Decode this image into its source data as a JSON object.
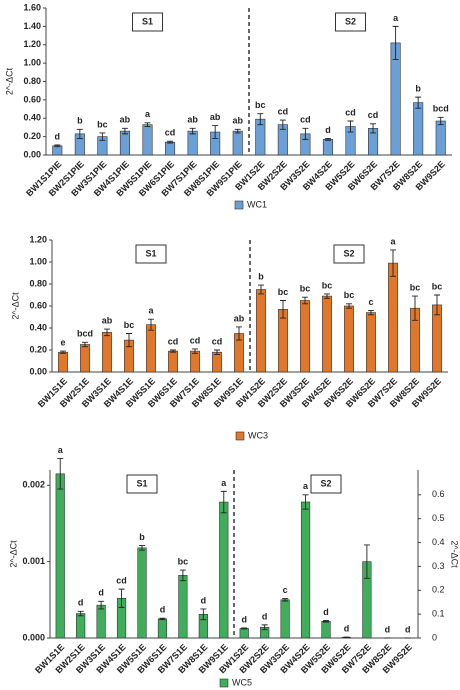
{
  "chart_data": [
    {
      "type": "bar",
      "categories": [
        "BW1S1PIE",
        "BW2S1PIE",
        "BW3S1PIE",
        "BW4S1PIE",
        "BW5S1PIE",
        "BW6S1PIE",
        "BW7S1PIE",
        "BW8S1PIE",
        "BW9S1PIE",
        "BW1S2E",
        "BW2S2E",
        "BW3S2E",
        "BW4S2E",
        "BW5S2E",
        "BW6S2E",
        "BW7S2E",
        "BW8S2E",
        "BW9S2E"
      ],
      "series": [
        {
          "name": "WC1",
          "color": "#6a9fd8",
          "values": [
            0.1,
            0.23,
            0.2,
            0.26,
            0.33,
            0.14,
            0.26,
            0.25,
            0.26,
            0.39,
            0.33,
            0.23,
            0.17,
            0.31,
            0.29,
            1.22,
            0.57,
            0.37
          ],
          "errors": [
            0.01,
            0.05,
            0.04,
            0.03,
            0.02,
            0.01,
            0.03,
            0.07,
            0.02,
            0.06,
            0.05,
            0.06,
            0.01,
            0.06,
            0.05,
            0.18,
            0.06,
            0.04
          ],
          "labels": [
            "d",
            "b",
            "bc",
            "ab",
            "a",
            "cd",
            "ab",
            "ab",
            "ab",
            "bc",
            "cd",
            "cd",
            "d",
            "cd",
            "cd",
            "a",
            "b",
            "bcd"
          ]
        }
      ],
      "ylabel": "2^-ΔCt",
      "annotations": [
        "S1",
        "S2"
      ],
      "ylim": [
        0,
        1.6
      ],
      "yticks": [
        {
          "value": 0,
          "label": "0.00"
        },
        {
          "value": 0.2,
          "label": "0.20"
        },
        {
          "value": 0.4,
          "label": "0.40"
        },
        {
          "value": 0.6,
          "label": "0.60"
        },
        {
          "value": 0.8,
          "label": "0.80"
        },
        {
          "value": 1.0,
          "label": "1.00"
        },
        {
          "value": 1.2,
          "label": "1.20"
        },
        {
          "value": 1.4,
          "label": "1.40"
        },
        {
          "value": 1.6,
          "label": "1.60"
        }
      ],
      "legend": "bottom"
    },
    {
      "type": "bar",
      "categories": [
        "BW1S1E",
        "BW2S1E",
        "BW3S1E",
        "BW4S1E",
        "BW5S1E",
        "BW6S1E",
        "BW7S1E",
        "BW8S1E",
        "BW9S1E",
        "BW1S2E",
        "BW2S2E",
        "BW3S2E",
        "BW4S2E",
        "BW5S2E",
        "BW6S2E",
        "BW7S2E",
        "BW8S2E",
        "BW9S2E"
      ],
      "series": [
        {
          "name": "WC3",
          "color": "#e2772c",
          "values": [
            0.18,
            0.25,
            0.36,
            0.29,
            0.43,
            0.19,
            0.19,
            0.18,
            0.35,
            0.75,
            0.57,
            0.65,
            0.69,
            0.6,
            0.54,
            0.99,
            0.58,
            0.61
          ],
          "errors": [
            0.01,
            0.02,
            0.03,
            0.06,
            0.05,
            0.01,
            0.02,
            0.02,
            0.06,
            0.04,
            0.08,
            0.03,
            0.02,
            0.02,
            0.02,
            0.12,
            0.11,
            0.09
          ],
          "labels": [
            "e",
            "bcd",
            "ab",
            "bc",
            "a",
            "cd",
            "cd",
            "cd",
            "ab",
            "b",
            "bc",
            "bc",
            "bc",
            "bc",
            "c",
            "a",
            "bc",
            "bc"
          ]
        }
      ],
      "ylabel": "2^-ΔCt",
      "annotations": [
        "S1",
        "S2"
      ],
      "ylim": [
        0,
        1.2
      ],
      "yticks": [
        {
          "value": 0,
          "label": "0.00"
        },
        {
          "value": 0.2,
          "label": "0.20"
        },
        {
          "value": 0.4,
          "label": "0.40"
        },
        {
          "value": 0.6,
          "label": "0.60"
        },
        {
          "value": 0.8,
          "label": "0.80"
        },
        {
          "value": 1.0,
          "label": "1.00"
        },
        {
          "value": 1.2,
          "label": "1.20"
        }
      ],
      "legend": "bottom"
    },
    {
      "type": "bar",
      "categories": [
        "BW1S1E",
        "BW2S1E",
        "BW3S1E",
        "BW4S1E",
        "BW5S1E",
        "BW6S1E",
        "BW7S1E",
        "BW8S1E",
        "BW9S1E",
        "BW1S2E",
        "BW2S2E",
        "BW3S2E",
        "BW4S2E",
        "BW5S2E",
        "BW6S2E",
        "BW7S2E",
        "BW8S2E",
        "BW9S2E"
      ],
      "series": [
        {
          "name": "WC5",
          "color": "#3fae5a",
          "values": [
            0.00215,
            0.00032,
            0.00043,
            0.00052,
            0.00118,
            0.00025,
            0.00082,
            0.00031,
            0.00178,
            null,
            null,
            null,
            null,
            null,
            null,
            null,
            null,
            null
          ],
          "errors": [
            0.0002,
            3e-05,
            5e-05,
            0.00012,
            3e-05,
            1e-05,
            7e-05,
            7e-05,
            0.00014,
            null,
            null,
            null,
            null,
            null,
            null,
            null,
            null,
            null
          ],
          "labels": [
            "a",
            "d",
            "d",
            "cd",
            "b",
            "d",
            "bc",
            "d",
            "a",
            null,
            null,
            null,
            null,
            null,
            null,
            null,
            null,
            null
          ]
        },
        {
          "axis": "y2",
          "color": "#3fae5a",
          "values": [
            null,
            null,
            null,
            null,
            null,
            null,
            null,
            null,
            null,
            0.04,
            0.045,
            0.16,
            0.57,
            0.07,
            0.003,
            0.32,
            0,
            0
          ],
          "errors": [
            null,
            null,
            null,
            null,
            null,
            null,
            null,
            null,
            null,
            0.002,
            0.01,
            0.005,
            0.03,
            0.003,
            0.001,
            0.07,
            0,
            0
          ],
          "labels": [
            null,
            null,
            null,
            null,
            null,
            null,
            null,
            null,
            null,
            "d",
            "d",
            "c",
            "a",
            "d",
            "d",
            null,
            "d",
            "d"
          ]
        }
      ],
      "ylabel": "2^-ΔCt",
      "y2label": "2^-ΔCt",
      "annotations": [
        "S1",
        "S2"
      ],
      "ylim": [
        0,
        0.0022
      ],
      "yticks": [
        {
          "value": 0,
          "label": "0.000"
        },
        0.001,
        0.002
      ],
      "y2lim": [
        0,
        0.704
      ],
      "y2ticks": [
        0,
        0.1,
        0.2,
        0.3,
        0.4,
        0.5,
        0.6
      ],
      "legend": "bottom"
    }
  ]
}
